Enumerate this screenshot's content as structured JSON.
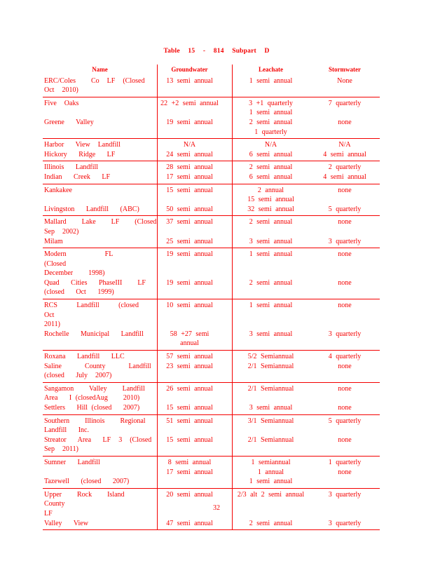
{
  "colors": {
    "accent": "#f40000",
    "paper": "#ffffff"
  },
  "page": {
    "title": "Table 15 - 814 Subpart D",
    "page_number": "32"
  },
  "table": {
    "headers": [
      "Name",
      "Groundwater",
      "Leachate",
      "Stormwater"
    ],
    "groups": [
      {
        "rows": [
          [
            "ERC/Coles    Co  LF  (Closed",
            "13 semi annual",
            "1 semi annual",
            "None"
          ],
          [
            "Oct  2010)",
            "",
            "",
            ""
          ]
        ]
      },
      {
        "rows": [
          [
            "Five  Oaks",
            "22 +2 semi annual",
            "3 +1 quarterly",
            "7 quarterly"
          ],
          [
            "",
            "",
            "1 semi annual",
            ""
          ],
          [
            "Greene   Valley",
            "19 semi annual",
            "2 semi annual",
            "none"
          ],
          [
            "",
            "",
            "1 quarterly",
            ""
          ]
        ]
      },
      {
        "rows": [
          [
            "Harbor   View  Landfill",
            "N/A",
            "N/A",
            "N/A"
          ],
          [
            "Hickory   Ridge   LF",
            "24 semi annual",
            "6 semi annual",
            "4 semi annual"
          ]
        ]
      },
      {
        "rows": [
          [
            "Illinois   Landfill",
            "28 semi annual",
            "2 semi annual",
            "2 quarterly"
          ],
          [
            "Indian   Creek   LF",
            "17 semi annual",
            "6 semi annual",
            "4 semi annual"
          ]
        ]
      },
      {
        "rows": [
          [
            "Kankakee",
            "15 semi annual",
            "2 annual",
            "none"
          ],
          [
            "",
            "",
            "15 semi annual",
            ""
          ],
          [
            "Livingston   Landfill   (ABC)",
            "50 semi annual",
            "32 semi annual",
            "5 quarterly"
          ]
        ]
      },
      {
        "rows": [
          [
            "Mallard    Lake    LF    (Closed",
            "37 semi annual",
            "2 semi annual",
            "none"
          ],
          [
            "Sep  2002)",
            "",
            "",
            ""
          ],
          [
            "Milam",
            "25 semi annual",
            "3 semi annual",
            "3 quarterly"
          ]
        ]
      },
      {
        "rows": [
          [
            "Modern          FL          (Closed",
            "19 semi annual",
            "1 semi annual",
            "none"
          ],
          [
            "December    1998)",
            "",
            "",
            ""
          ],
          [
            "Quad   Cities   PhaseIII    LF",
            "19 semi annual",
            "2 semi annual",
            "none"
          ],
          [
            "(closed   Oct   1999)",
            "",
            "",
            ""
          ]
        ]
      },
      {
        "rows": [
          [
            "RCS     Landfill     (closed     Oct",
            "10 semi annual",
            "1 semi annual",
            "none"
          ],
          [
            "2011)",
            "",
            "",
            ""
          ],
          [
            "Rochelle   Municipal   Landfill",
            "58 +27 semi",
            "3 semi annual",
            "3 quarterly"
          ],
          [
            "",
            "annual",
            "",
            ""
          ]
        ]
      },
      {
        "rows": [
          [
            "Roxana   Landfill   LLC",
            "57 semi annual",
            "5/2 Semiannual",
            "4 quarterly"
          ],
          [
            "Saline      County      Landfill",
            "23 semi annual",
            "2/1 Semiannual",
            "none"
          ],
          [
            "(closed   July  2007)",
            "",
            "",
            ""
          ]
        ]
      },
      {
        "rows": [
          [
            "Sangamon    Valley    Landfill",
            "26 semi annual",
            "2/1 Semiannual",
            "none"
          ],
          [
            "Area   I (closedAug    2010)",
            "",
            "",
            ""
          ],
          [
            "Settlers   Hill (closed   2007)",
            "15 semi annual",
            "3 semi annual",
            "none"
          ]
        ]
      },
      {
        "rows": [
          [
            "Southern    Illinois    Regional",
            "51 semi annual",
            "3/1 Semiannual",
            "5 quarterly"
          ],
          [
            "Landfill   Inc.",
            "",
            "",
            ""
          ],
          [
            "Streator   Area   LF  3  (Closed",
            "15 semi annual",
            "2/1 Semiannual",
            "none"
          ],
          [
            "Sep  2011)",
            "",
            "",
            ""
          ]
        ]
      },
      {
        "rows": [
          [
            "Sumner   Landfill",
            "8 semi annual",
            "1 semiannual",
            "1 quarterly"
          ],
          [
            "",
            "17 semi annual",
            "1 annual",
            "none"
          ],
          [
            "Tazewell   (closed   2007)",
            "",
            "1 semi annual",
            ""
          ]
        ]
      },
      {
        "rows": [
          [
            "Upper    Rock    Island    County",
            "20 semi annual",
            "2/3 alt 2 semi annual",
            "3 quarterly"
          ],
          [
            "LF",
            "",
            "",
            ""
          ],
          [
            "Valley   View",
            "47 semi annual",
            "2 semi annual",
            "3 quarterly"
          ]
        ]
      }
    ]
  }
}
